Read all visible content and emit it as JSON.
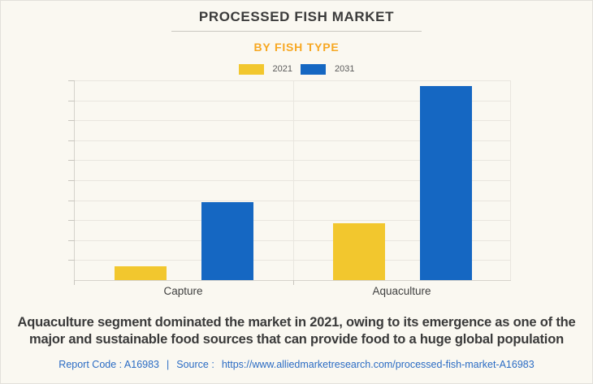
{
  "page": {
    "title": "PROCESSED FISH MARKET",
    "subtitle": "BY FISH TYPE",
    "description": "Aquaculture segment dominated the market in 2021, owing to its emergence as one of the major and sustainable food sources that can provide food to a huge global population",
    "footer": {
      "report_code": "Report Code : A16983",
      "separator": "|",
      "source_prefix": "Source :",
      "source_url": "https://www.alliedmarketresearch.com/processed-fish-market-A16983"
    }
  },
  "colors": {
    "background": "#FAF8F1",
    "title_text": "#3B3B3B",
    "subtitle_orange": "#F7A823",
    "footer_blue": "#2B6CC4",
    "series_2021_yellow": "#F2C72E",
    "series_2031_blue": "#1567C2",
    "gridline": "#E9E6DF"
  },
  "chart_data": {
    "type": "bar",
    "title": "PROCESSED FISH MARKET",
    "subtitle": "BY FISH TYPE",
    "categories": [
      "Capture",
      "Aquaculture"
    ],
    "series": [
      {
        "name": "2021",
        "color": "#F2C72E",
        "values": [
          0.7,
          2.85
        ]
      },
      {
        "name": "2031",
        "color": "#1567C2",
        "values": [
          3.9,
          9.7
        ]
      }
    ],
    "xlabel": "",
    "ylabel": "",
    "ylim": [
      0,
      10
    ],
    "y_tick_labels_visible": false,
    "grid": "horizontal",
    "grid_divisions": 10,
    "legend_position": "top",
    "note": "Y-axis has no numeric labels in source; values are relative units estimated from the 10 gridline divisions."
  }
}
